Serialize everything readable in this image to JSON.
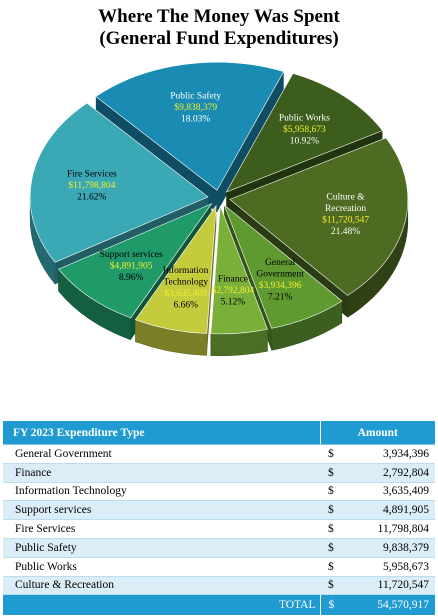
{
  "title_line1": "Where The Money Was Spent",
  "title_line2": "(General Fund Expenditures)",
  "chart_data": {
    "type": "pie",
    "title": "Where The Money Was Spent (General Fund Expenditures)",
    "slices": [
      {
        "label": [
          "Public Works"
        ],
        "amount": "$5,958,673",
        "percent": "10.92%",
        "value": 5958673,
        "color": "#3c5d1b",
        "text_color": "#ffffff"
      },
      {
        "label": [
          "Culture &",
          "Recreation"
        ],
        "amount": "$11,720,547",
        "percent": "21.48%",
        "value": 11720547,
        "color": "#4e6b22",
        "text_color": "#ffffff"
      },
      {
        "label": [
          "General",
          "Government"
        ],
        "amount": "$3,934,396",
        "percent": "7.21%",
        "value": 3934396,
        "color": "#5f9a30",
        "text_color": "#000000"
      },
      {
        "label": [
          "Finance"
        ],
        "amount": "$2,792,804",
        "percent": "5.12%",
        "value": 2792804,
        "color": "#7ab03a",
        "text_color": "#000000"
      },
      {
        "label": [
          "Information",
          "Technology"
        ],
        "amount": "$3,635,409",
        "percent": "6.66%",
        "value": 3635409,
        "color": "#c4cc3d",
        "text_color": "#000000"
      },
      {
        "label": [
          "Support services"
        ],
        "amount": "$4,891,905",
        "percent": "8.96%",
        "value": 4891905,
        "color": "#1f9a68",
        "text_color": "#000000"
      },
      {
        "label": [
          "Fire Services"
        ],
        "amount": "$11,798,804",
        "percent": "21.62%",
        "value": 11798804,
        "color": "#3aa9b5",
        "text_color": "#000000"
      },
      {
        "label": [
          "Public Safety"
        ],
        "amount": "$9,838,379",
        "percent": "18.03%",
        "value": 9838379,
        "color": "#1a8cb4",
        "text_color": "#ffffff"
      }
    ],
    "amount_color": "#f2ee2c"
  },
  "table": {
    "header_type": "FY 2023 Expenditure Type",
    "header_amount": "Amount",
    "currency": "$",
    "rows": [
      {
        "type": "General Government",
        "amount": "3,934,396"
      },
      {
        "type": "Finance",
        "amount": "2,792,804"
      },
      {
        "type": "Information Technology",
        "amount": "3,635,409"
      },
      {
        "type": "Support services",
        "amount": "4,891,905"
      },
      {
        "type": "Fire Services",
        "amount": "11,798,804"
      },
      {
        "type": "Public Safety",
        "amount": "9,838,379"
      },
      {
        "type": "Public Works",
        "amount": "5,958,673"
      },
      {
        "type": "Culture & Recreation",
        "amount": "11,720,547"
      }
    ],
    "total_label": "TOTAL",
    "total_amount": "54,570,917"
  },
  "colors": {
    "header_blue": "#1f9bd1",
    "row_alt": "#dbeef8"
  }
}
